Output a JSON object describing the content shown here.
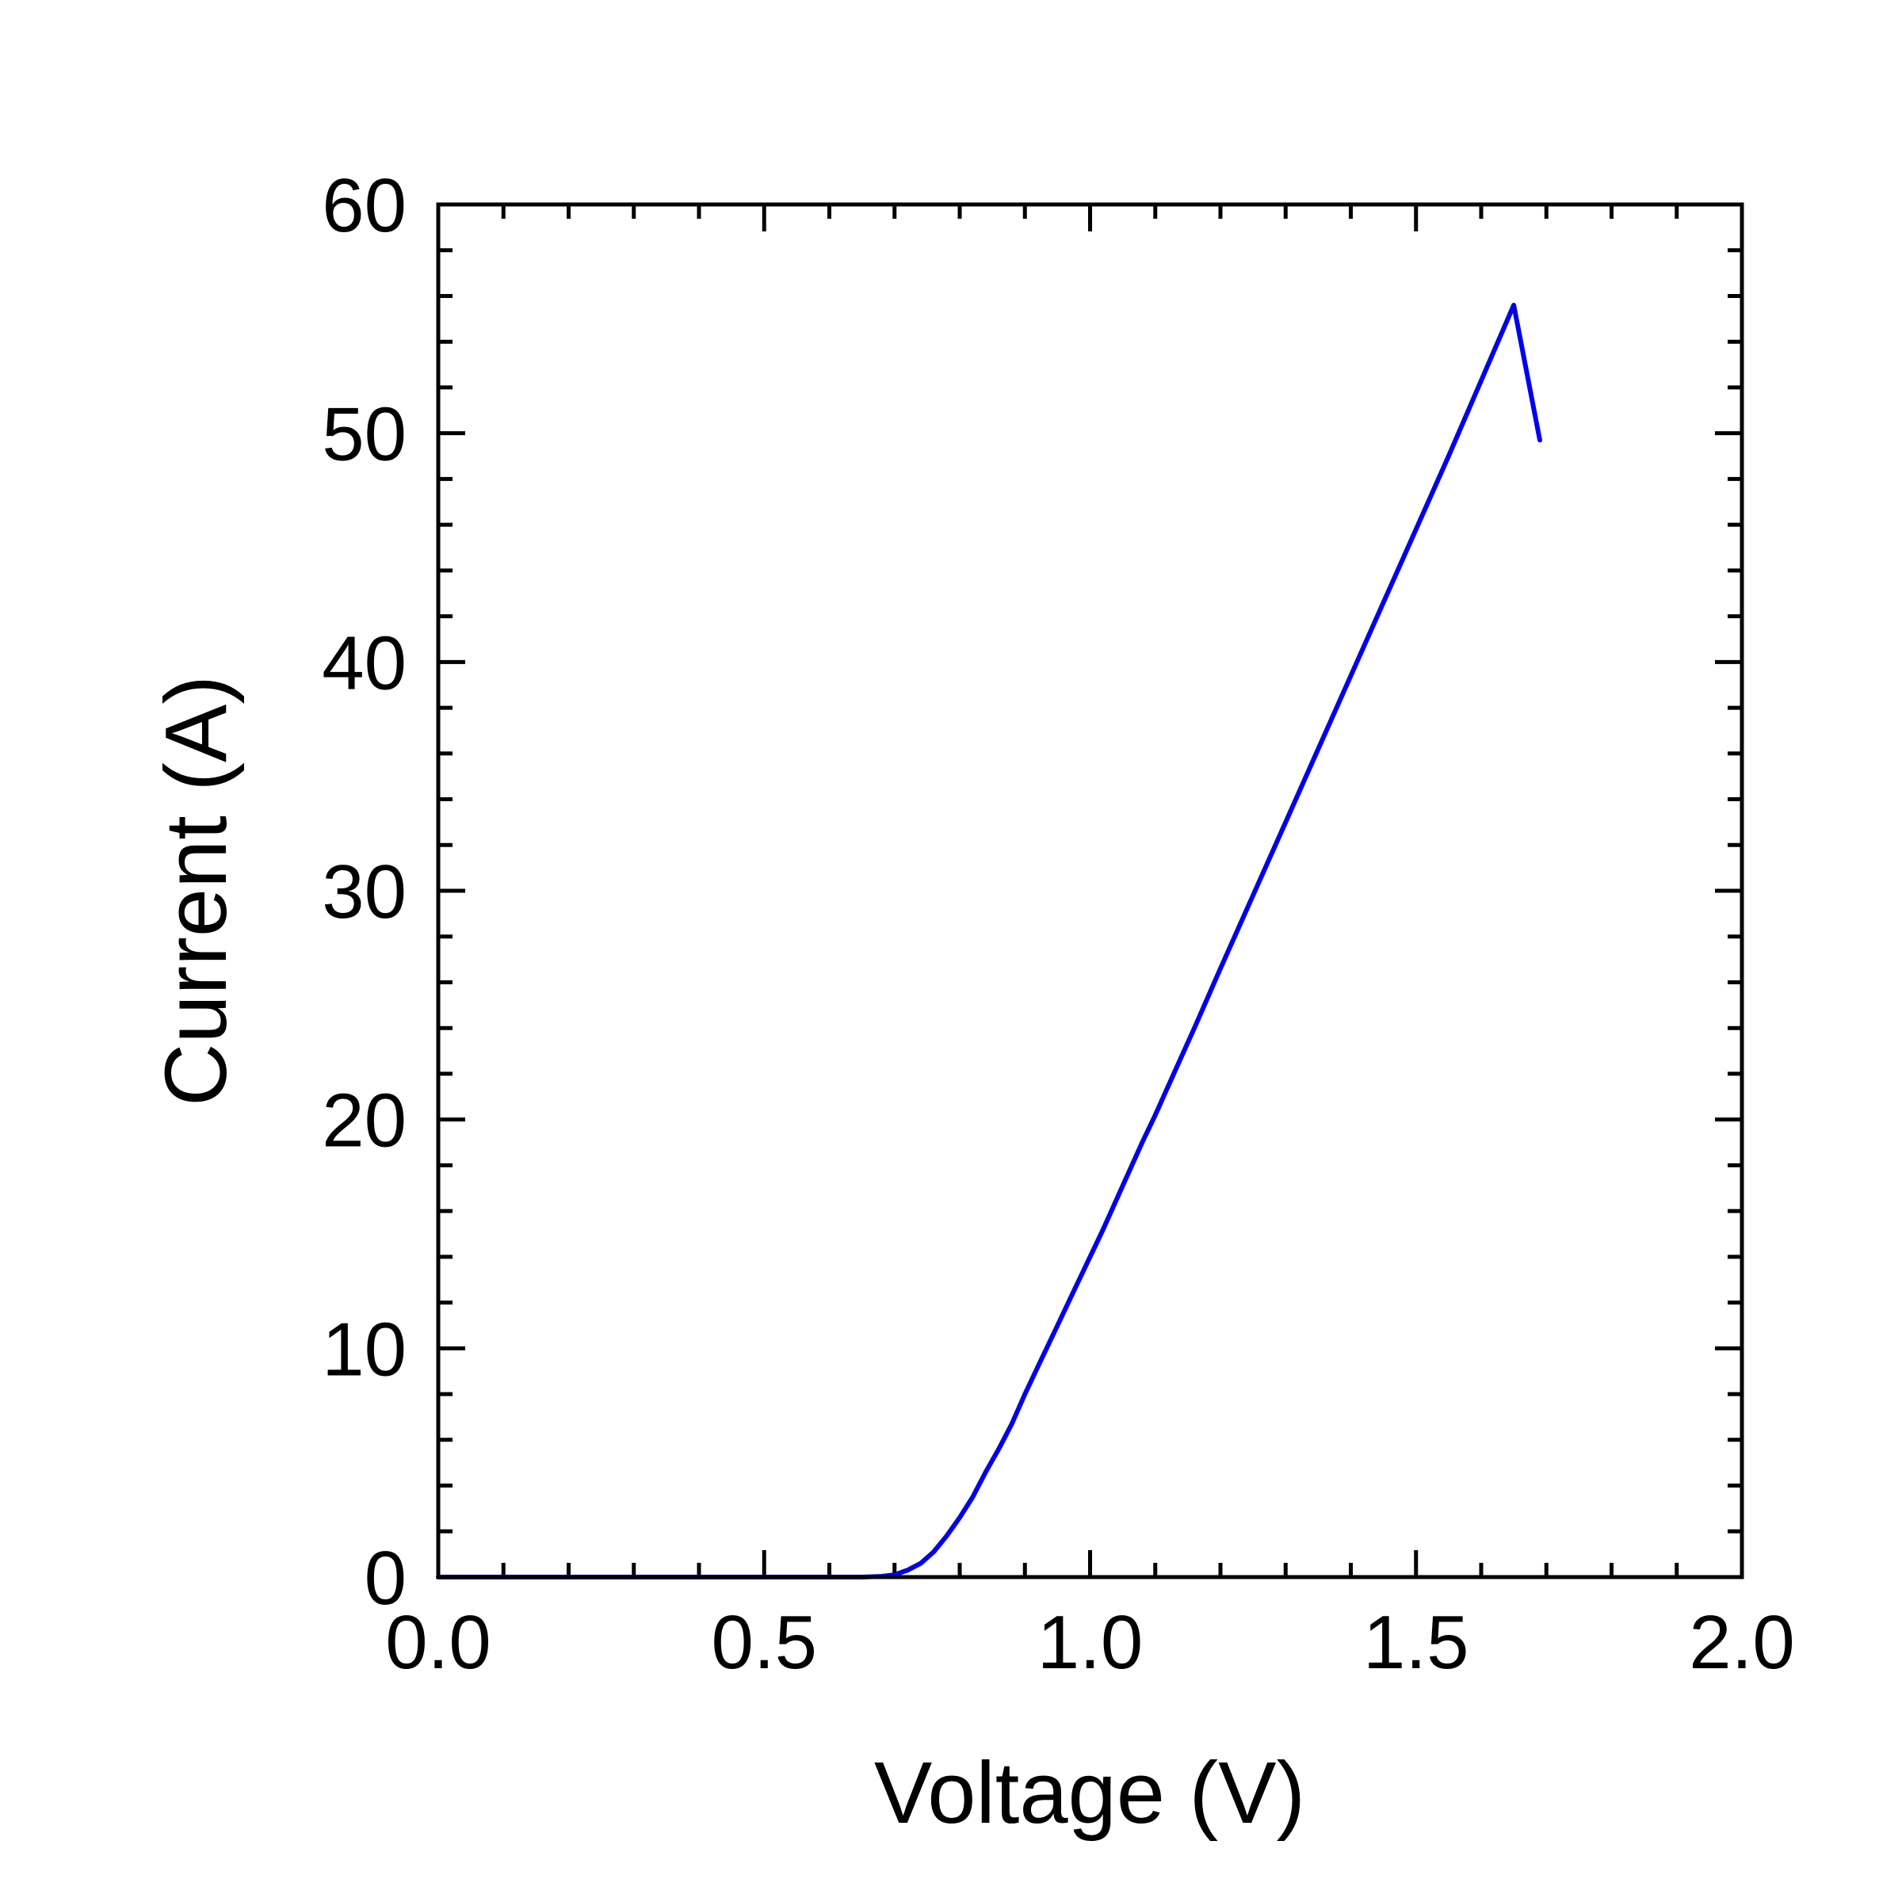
{
  "chart_data": {
    "type": "line",
    "title": "",
    "xlabel": "Voltage (V)",
    "ylabel": "Current (A)",
    "xlim": [
      0.0,
      2.0
    ],
    "ylim": [
      0,
      60
    ],
    "x_ticks": [
      0.0,
      0.5,
      1.0,
      1.5,
      2.0
    ],
    "x_tick_labels": [
      "0.0",
      "0.5",
      "1.0",
      "1.5",
      "2.0"
    ],
    "y_ticks": [
      0,
      10,
      20,
      30,
      40,
      50,
      60
    ],
    "y_tick_labels": [
      "0",
      "10",
      "20",
      "30",
      "40",
      "50",
      "60"
    ],
    "x_minor_step": 0.1,
    "y_minor_step": 2,
    "grid": false,
    "legend": "none",
    "series": [
      {
        "color": "#0000ee",
        "x": [
          0.0,
          0.1,
          0.2,
          0.3,
          0.4,
          0.5,
          0.6,
          0.65,
          0.68,
          0.7,
          0.72,
          0.74,
          0.76,
          0.78,
          0.8,
          0.82,
          0.84,
          0.86,
          0.88,
          0.9,
          0.92,
          0.95,
          0.98,
          1.0,
          1.02,
          1.05,
          1.08,
          1.1,
          1.13,
          1.16,
          1.2,
          1.25,
          1.3,
          1.35,
          1.4,
          1.45,
          1.5,
          1.55,
          1.6,
          1.65,
          1.69
        ],
        "y": [
          0.0,
          0.0,
          0.0,
          0.0,
          0.0,
          0.0,
          0.0,
          0.0,
          0.03,
          0.1,
          0.3,
          0.6,
          1.1,
          1.8,
          2.6,
          3.5,
          4.6,
          5.6,
          6.7,
          8.0,
          9.2,
          11.0,
          12.8,
          14.0,
          15.2,
          17.1,
          19.0,
          20.2,
          22.1,
          24.0,
          26.6,
          29.8,
          33.0,
          36.2,
          39.4,
          42.6,
          45.8,
          49.0,
          52.3,
          55.6,
          49.7
        ]
      }
    ]
  }
}
